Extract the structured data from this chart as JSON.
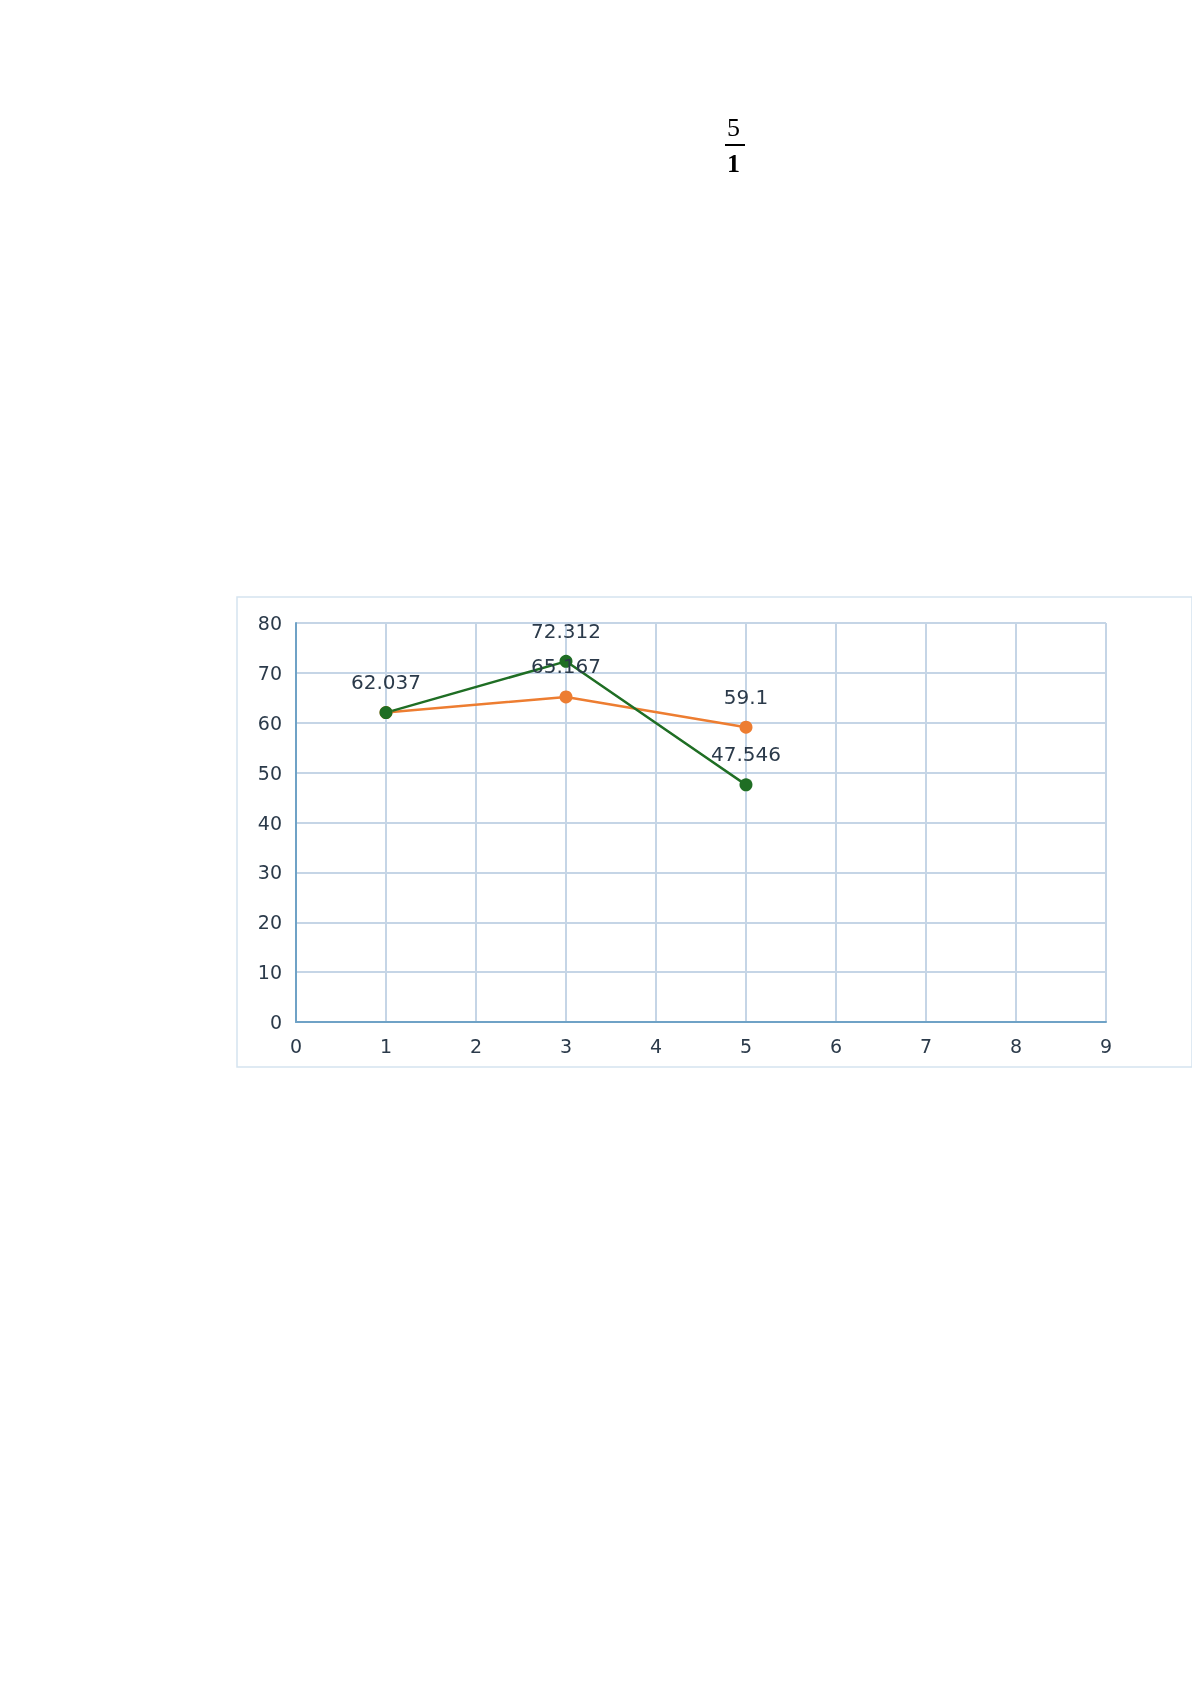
{
  "chart_data": {
    "type": "line",
    "x": [
      1,
      3,
      5
    ],
    "series": [
      {
        "color": "#ed7d31",
        "values": [
          62.037,
          65.167,
          59.1
        ],
        "value_labels": [
          "62.037",
          "65.167",
          "59.1"
        ]
      },
      {
        "color": "#1f6e24",
        "values": [
          62.037,
          72.312,
          47.546
        ],
        "value_labels": [
          null,
          "72.312",
          "47.546"
        ]
      }
    ],
    "xlim": [
      0,
      9
    ],
    "xticks": [
      0,
      1,
      2,
      3,
      4,
      5,
      6,
      7,
      8,
      9
    ],
    "ylim": [
      0,
      80
    ],
    "yticks": [
      0,
      10,
      20,
      30,
      40,
      50,
      60,
      70,
      80
    ],
    "grid": true,
    "marker": "circle",
    "line_style": "solid",
    "annotations": [
      "5",
      "1"
    ]
  }
}
